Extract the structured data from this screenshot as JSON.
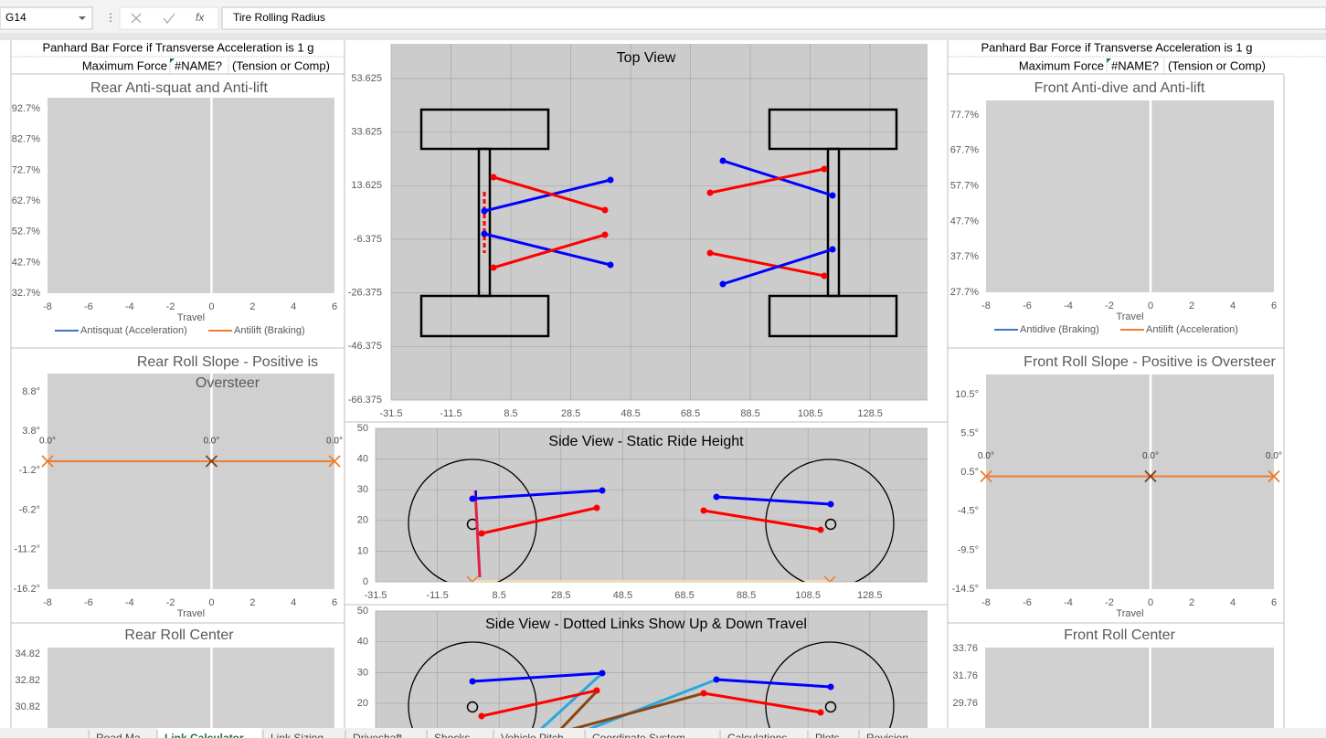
{
  "formula_bar": {
    "cell": "G14",
    "formula": "Tire Rolling Radius"
  },
  "rear_panhard": {
    "title": "Panhard Bar Force if Transverse Acceleration is 1 g",
    "label": "Maximum Force",
    "value": "#NAME?",
    "note": "(Tension or Comp)"
  },
  "front_panhard": {
    "title": "Panhard Bar Force if Transverse Acceleration is 1 g",
    "label": "Maximum Force",
    "value": "#NAME?",
    "note": "(Tension or Comp)"
  },
  "charts": {
    "rear_anti": {
      "type": "line",
      "title": [
        "Rear Anti-squat and Anti-lift"
      ],
      "xlabel": "Travel",
      "xlim": [
        -8,
        6
      ],
      "xticks": [
        -8,
        -6,
        -4,
        -2,
        0,
        2,
        4,
        6
      ],
      "ylim": [
        32.7,
        96.3
      ],
      "yticks": [
        {
          "value": 92.7,
          "label": "92.7%"
        },
        {
          "value": 82.7,
          "label": "82.7%"
        },
        {
          "value": 72.7,
          "label": "72.7%"
        },
        {
          "value": 62.7,
          "label": "62.7%"
        },
        {
          "value": 52.7,
          "label": "52.7%"
        },
        {
          "value": 42.7,
          "label": "42.7%"
        },
        {
          "value": 32.7,
          "label": "32.7%"
        }
      ],
      "series": [
        {
          "name": "Antisquat (Acceleration)",
          "color": "#4472c4"
        },
        {
          "name": "Antilift (Braking)",
          "color": "#ed7d31"
        }
      ]
    },
    "rear_slope": {
      "type": "line",
      "title": [
        "Rear Roll Slope - Positive is",
        "Oversteer"
      ],
      "xlabel": "Travel",
      "xlim": [
        -8,
        6
      ],
      "xticks": [
        -8,
        -6,
        -4,
        -2,
        0,
        2,
        4,
        6
      ],
      "ylim": [
        -16.2,
        11.1
      ],
      "yticks": [
        {
          "value": 8.8,
          "label": "8.8°"
        },
        {
          "value": 3.8,
          "label": "3.8°"
        },
        {
          "value": -1.2,
          "label": "-1.2°"
        },
        {
          "value": -6.2,
          "label": "-6.2°"
        },
        {
          "value": -11.2,
          "label": "-11.2°"
        },
        {
          "value": -16.2,
          "label": "-16.2°"
        }
      ],
      "x": [
        -8,
        0,
        6
      ],
      "values": [
        0,
        0,
        0
      ],
      "value_labels": [
        "0.0°",
        "0.0°",
        "0.0°"
      ],
      "color": "#ed7d31",
      "marker_colors": [
        "#ed7d31",
        "#7b3f1e",
        "#ed7d31"
      ]
    },
    "rear_rc": {
      "type": "line",
      "title": [
        "Rear Roll Center"
      ],
      "xlim": [
        -8,
        6
      ],
      "xticks": [],
      "ylim": [
        29.23,
        35.3
      ],
      "yticks": [
        34.82,
        32.82,
        30.82
      ]
    },
    "front_anti": {
      "type": "line",
      "title": [
        "Front Anti-dive and Anti-lift"
      ],
      "xlabel": "Travel",
      "xlim": [
        -8,
        6
      ],
      "xticks": [
        -8,
        -6,
        -4,
        -2,
        0,
        2,
        4,
        6
      ],
      "ylim": [
        27.7,
        81.8
      ],
      "yticks": [
        {
          "value": 77.7,
          "label": "77.7%"
        },
        {
          "value": 67.7,
          "label": "67.7%"
        },
        {
          "value": 57.7,
          "label": "57.7%"
        },
        {
          "value": 47.7,
          "label": "47.7%"
        },
        {
          "value": 37.7,
          "label": "37.7%"
        },
        {
          "value": 27.7,
          "label": "27.7%"
        }
      ],
      "series": [
        {
          "name": "Antidive (Braking)",
          "color": "#4472c4"
        },
        {
          "name": "Antilift (Acceleration)",
          "color": "#ed7d31"
        }
      ]
    },
    "front_slope": {
      "type": "line",
      "title": [
        "Front Roll Slope - Positive is Oversteer"
      ],
      "xlabel": "Travel",
      "xlim": [
        -8,
        6
      ],
      "xticks": [
        -8,
        -6,
        -4,
        -2,
        0,
        2,
        4,
        6
      ],
      "ylim": [
        -14.5,
        13.08
      ],
      "yticks": [
        {
          "value": 10.5,
          "label": "10.5°"
        },
        {
          "value": 5.5,
          "label": "5.5°"
        },
        {
          "value": 0.5,
          "label": "0.5°"
        },
        {
          "value": -4.5,
          "label": "-4.5°"
        },
        {
          "value": -9.5,
          "label": "-9.5°"
        },
        {
          "value": -14.5,
          "label": "-14.5°"
        }
      ],
      "x": [
        -8,
        0,
        6
      ],
      "values": [
        0,
        0,
        0
      ],
      "value_labels": [
        "0.0°",
        "0.0°",
        "0.0°"
      ],
      "color": "#ed7d31",
      "marker_colors": [
        "#ed7d31",
        "#7b3f1e",
        "#ed7d31"
      ]
    },
    "front_rc": {
      "type": "line",
      "title": [
        "Front Roll Center"
      ],
      "xlim": [
        -8,
        6
      ],
      "xticks": [],
      "ylim": [
        27.96,
        33.83
      ],
      "yticks": [
        33.76,
        31.76,
        29.76
      ]
    },
    "top_view": {
      "type": "diagram",
      "title": [
        "Top View"
      ],
      "grid": true,
      "xlim": [
        -31.5,
        147.7
      ],
      "xticks": [
        -31.5,
        -11.5,
        8.5,
        28.5,
        48.5,
        68.5,
        88.5,
        108.5,
        128.5
      ],
      "ylim": [
        -66.375,
        66.58
      ],
      "yticks": [
        53.625,
        33.625,
        13.625,
        -6.375,
        -26.375,
        -46.375,
        -66.375
      ]
    },
    "side_static": {
      "type": "diagram",
      "title": [
        "Side View - Static Ride Height"
      ],
      "grid": true,
      "xlim": [
        -31.5,
        147.2
      ],
      "xticks": [
        -31.5,
        -11.5,
        8.5,
        28.5,
        48.5,
        68.5,
        88.5,
        108.5,
        128.5
      ],
      "ylim": [
        0,
        50
      ],
      "yticks": [
        0,
        10,
        20,
        30,
        40,
        50
      ]
    },
    "side_dotted": {
      "type": "diagram",
      "title": [
        "Side View - Dotted Links Show Up & Down Travel"
      ],
      "grid": true,
      "xlim": [
        -31.5,
        147.2
      ],
      "xticks": [
        -31.5,
        -11.5,
        8.5,
        28.5,
        48.5,
        68.5,
        88.5,
        108.5,
        128.5
      ],
      "ylim": [
        12,
        50
      ],
      "yticks": [
        20,
        30,
        40,
        50
      ],
      "hide_xtick_labels": true
    }
  },
  "sheet_tabs": [
    "Road Ma",
    "Link Calculator",
    "Link Sizing",
    "Driveshaft",
    "Shocks",
    "Vehicle Pitch",
    "Coordinate System",
    "Calculations",
    "Plots",
    "Revision"
  ]
}
